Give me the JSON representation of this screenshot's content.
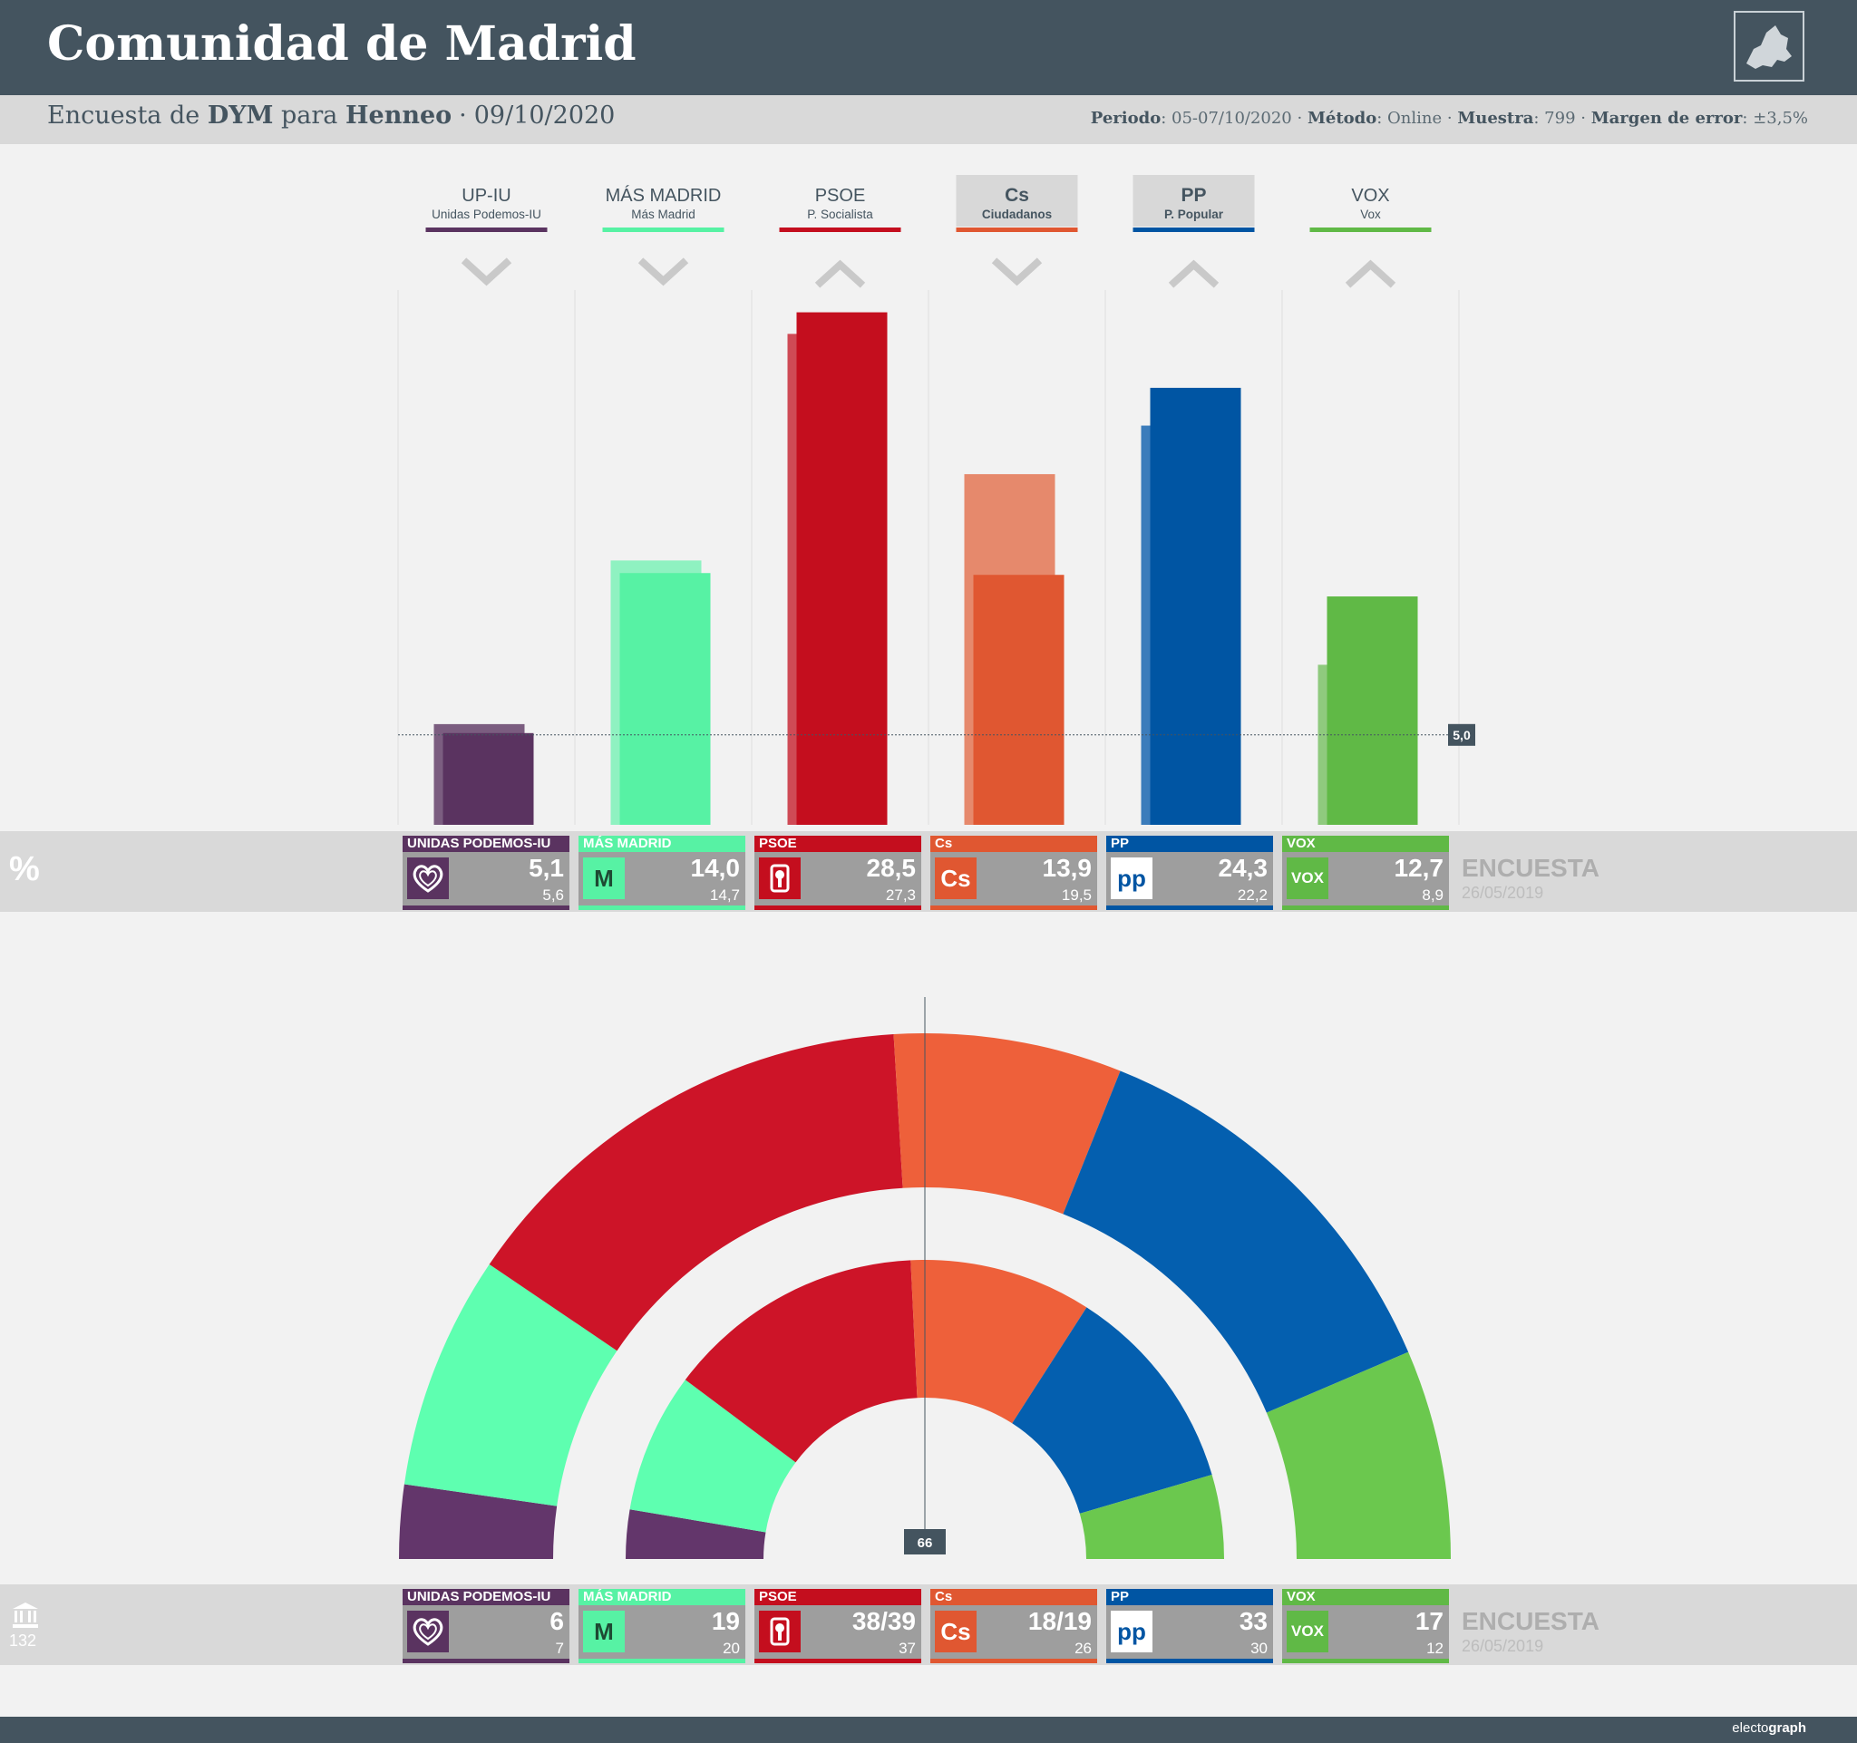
{
  "header": {
    "title": "Comunidad de Madrid",
    "subtitle": {
      "pre": "Encuesta de",
      "pollster": "DYM",
      "mid": "para",
      "media": "Henneo",
      "sep": "·",
      "date": "09/10/2020"
    },
    "meta": {
      "periodo_label": "Periodo",
      "periodo": "05-07/10/2020",
      "metodo_label": "Método",
      "metodo": "Online",
      "muestra_label": "Muestra",
      "muestra": "799",
      "margen_label": "Margen de error",
      "margen": "±3,5%"
    }
  },
  "chart_data": [
    {
      "type": "bar",
      "categories": [
        "UP-IU",
        "MÁS MADRID",
        "PSOE",
        "Cs",
        "PP",
        "VOX"
      ],
      "category_subtitles": [
        "Unidas Podemos-IU",
        "Más Madrid",
        "P. Socialista",
        "Ciudadanos",
        "P. Popular",
        "Vox"
      ],
      "series": [
        {
          "name": "ENCUESTA",
          "values": [
            5.1,
            14.0,
            28.5,
            13.9,
            24.3,
            12.7
          ]
        },
        {
          "name": "26/05/2019",
          "values": [
            5.6,
            14.7,
            27.3,
            19.5,
            22.2,
            8.9
          ]
        }
      ],
      "trend": [
        "down",
        "down",
        "up",
        "down",
        "up",
        "up"
      ],
      "highlighted": [
        "Cs",
        "PP"
      ],
      "threshold": 5.0,
      "threshold_label": "5,0",
      "ylim": [
        0,
        30
      ],
      "unit_symbol": "%"
    },
    {
      "type": "pie",
      "subtype": "parliament-hemicycle",
      "categories": [
        "UP-IU",
        "MÁS MADRID",
        "PSOE",
        "Cs",
        "PP",
        "VOX"
      ],
      "series": [
        {
          "name": "ENCUESTA",
          "values": [
            6,
            19,
            38.5,
            18.5,
            33,
            17
          ]
        },
        {
          "name": "26/05/2019",
          "values": [
            7,
            20,
            37,
            26,
            30,
            12
          ]
        }
      ],
      "total_seats": 132,
      "majority": 66,
      "majority_label": "66"
    }
  ],
  "pct_cards": [
    {
      "name": "UNIDAS PODEMOS-IU",
      "value": "5,1",
      "previous": "5,6"
    },
    {
      "name": "MÁS MADRID",
      "value": "14,0",
      "previous": "14,7"
    },
    {
      "name": "PSOE",
      "value": "28,5",
      "previous": "27,3"
    },
    {
      "name": "Cs",
      "value": "13,9",
      "previous": "19,5"
    },
    {
      "name": "PP",
      "value": "24,3",
      "previous": "22,2"
    },
    {
      "name": "VOX",
      "value": "12,7",
      "previous": "8,9"
    }
  ],
  "seat_cards": [
    {
      "name": "UNIDAS PODEMOS-IU",
      "value": "6",
      "previous": "7"
    },
    {
      "name": "MÁS MADRID",
      "value": "19",
      "previous": "20"
    },
    {
      "name": "PSOE",
      "value": "38/39",
      "previous": "37"
    },
    {
      "name": "Cs",
      "value": "18/19",
      "previous": "26"
    },
    {
      "name": "PP",
      "value": "33",
      "previous": "30"
    },
    {
      "name": "VOX",
      "value": "17",
      "previous": "12"
    }
  ],
  "logos": [
    "heart-icon",
    "mas-madrid-m-icon",
    "psoe-rose-icon",
    "cs-logo-icon",
    "pp-logo-icon",
    "vox-logo-icon"
  ],
  "logo_text": [
    "",
    "M",
    "",
    "Cs",
    "pp",
    "VOX"
  ],
  "legend": {
    "current": "ENCUESTA",
    "previous_date": "26/05/2019"
  },
  "pct_symbol": "%",
  "seats_total": "132",
  "brand": {
    "prefix": "electo",
    "bold": "graph"
  },
  "colors": {
    "UP-IU": "#5a3360",
    "MÁS MADRID": "#57f2a4",
    "PSOE": "#c40e1e",
    "Cs": "#e05731",
    "PP": "#0055a3",
    "VOX": "#60b946",
    "header": "#44545f",
    "band": "#d9d9d9",
    "background": "#f2f2f2"
  },
  "light_colors": {
    "UP-IU": "#7b5d80",
    "MÁS MADRID": "#8ff2c1",
    "PSOE": "#cf4a55",
    "Cs": "#e6896c",
    "PP": "#3b7cbb",
    "VOX": "#8fca7e"
  },
  "hemi_colors": {
    "UP-IU": "#63366b",
    "MÁS MADRID": "#5effb0",
    "PSOE": "#cd1428",
    "Cs": "#ee603a",
    "PP": "#045faf",
    "VOX": "#6bc84e"
  }
}
